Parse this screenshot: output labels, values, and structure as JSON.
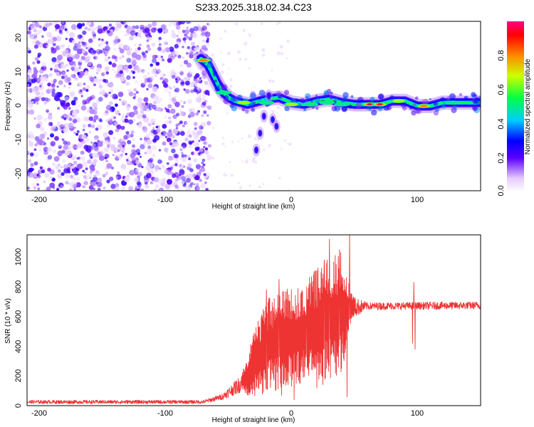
{
  "title": "S233.2025.318.02.34.C23",
  "chart_data": [
    {
      "type": "heatmap",
      "name": "spectrogram",
      "xlabel": "Height of straight line (km)",
      "ylabel": "Frequency (Hz)",
      "xlim": [
        -210,
        150
      ],
      "ylim": [
        -25,
        25
      ],
      "xticks": [
        -200,
        -100,
        0,
        100
      ],
      "yticks": [
        -20,
        -10,
        0,
        10,
        20
      ],
      "xtick_labels": [
        "-200",
        "-100",
        "0",
        "100"
      ],
      "ytick_labels": [
        "-20",
        "-10",
        "0",
        "10",
        "20"
      ],
      "ridge": [
        {
          "x": -72,
          "y": 14
        },
        {
          "x": -66,
          "y": 12
        },
        {
          "x": -62,
          "y": 9
        },
        {
          "x": -58,
          "y": 6
        },
        {
          "x": -54,
          "y": 4
        },
        {
          "x": -50,
          "y": 2.5
        },
        {
          "x": -45,
          "y": 1.5
        },
        {
          "x": -40,
          "y": 1
        },
        {
          "x": -35,
          "y": 0.5
        },
        {
          "x": -30,
          "y": 1
        },
        {
          "x": -20,
          "y": 2
        },
        {
          "x": -10,
          "y": 2.5
        },
        {
          "x": 0,
          "y": 1
        },
        {
          "x": 10,
          "y": 0.5
        },
        {
          "x": 20,
          "y": 1.5
        },
        {
          "x": 30,
          "y": 2
        },
        {
          "x": 40,
          "y": 1
        },
        {
          "x": 50,
          "y": 0.5
        },
        {
          "x": 60,
          "y": 0.5
        },
        {
          "x": 70,
          "y": 0.5
        },
        {
          "x": 80,
          "y": 1.5
        },
        {
          "x": 90,
          "y": 1.5
        },
        {
          "x": 100,
          "y": 0
        },
        {
          "x": 110,
          "y": 0
        },
        {
          "x": 120,
          "y": 1
        },
        {
          "x": 130,
          "y": 1
        },
        {
          "x": 140,
          "y": 1
        },
        {
          "x": 150,
          "y": 1
        }
      ],
      "peak_spots": [
        {
          "x": -70,
          "y": 13.5,
          "v": 0.8
        },
        {
          "x": -54,
          "y": 4,
          "v": 0.55
        },
        {
          "x": -38,
          "y": 1,
          "v": 0.75
        },
        {
          "x": -20,
          "y": 1,
          "v": 0.6
        },
        {
          "x": 0,
          "y": 0.5,
          "v": 0.65
        },
        {
          "x": 15,
          "y": 0.5,
          "v": 0.5
        },
        {
          "x": 28,
          "y": 1,
          "v": 0.6
        },
        {
          "x": 40,
          "y": 0.5,
          "v": 0.5
        },
        {
          "x": 62,
          "y": 0.5,
          "v": 0.95
        },
        {
          "x": 70,
          "y": 0.5,
          "v": 0.95
        },
        {
          "x": 85,
          "y": 1.5,
          "v": 0.75
        },
        {
          "x": 105,
          "y": 0,
          "v": 0.9
        },
        {
          "x": 128,
          "y": 1,
          "v": 0.55
        }
      ],
      "tail_spots": [
        {
          "x": -22,
          "y": -3
        },
        {
          "x": -25,
          "y": -8
        },
        {
          "x": -28,
          "y": -13
        },
        {
          "x": -15,
          "y": -4
        },
        {
          "x": -12,
          "y": -6
        },
        {
          "x": -18,
          "y": 3
        }
      ]
    },
    {
      "type": "colorbar",
      "name": "amplitude-colorbar",
      "label": "Normalized spectral amplitude",
      "range": [
        0,
        1
      ],
      "ticks": [
        0.0,
        0.2,
        0.4,
        0.6,
        0.8
      ],
      "tick_labels": [
        "0.0",
        "0.2",
        "0.4",
        "0.6",
        "0.8"
      ]
    },
    {
      "type": "line",
      "name": "snr-trace",
      "xlabel": "Height of straight line (km)",
      "ylabel": "SNR (10 * v/v)",
      "xlim": [
        -210,
        150
      ],
      "ylim": [
        0,
        1150
      ],
      "xticks": [
        -200,
        -100,
        0,
        100
      ],
      "yticks": [
        0,
        200,
        400,
        600,
        800,
        1000
      ],
      "xtick_labels": [
        "-200",
        "-100",
        "0",
        "100"
      ],
      "ytick_labels": [
        "0",
        "200",
        "400",
        "600",
        "800",
        "1000"
      ],
      "color": "#ee3333",
      "envelope": [
        {
          "x": -210,
          "base": 25,
          "amp": 12
        },
        {
          "x": -70,
          "base": 25,
          "amp": 12
        },
        {
          "x": -55,
          "base": 60,
          "amp": 20
        },
        {
          "x": -40,
          "base": 150,
          "amp": 60
        },
        {
          "x": -30,
          "base": 280,
          "amp": 230
        },
        {
          "x": -20,
          "base": 400,
          "amp": 320
        },
        {
          "x": -5,
          "base": 450,
          "amp": 330
        },
        {
          "x": 10,
          "base": 480,
          "amp": 340
        },
        {
          "x": 25,
          "base": 560,
          "amp": 420
        },
        {
          "x": 40,
          "base": 620,
          "amp": 420
        },
        {
          "x": 48,
          "base": 660,
          "amp": 80
        },
        {
          "x": 60,
          "base": 670,
          "amp": 25
        },
        {
          "x": 150,
          "base": 675,
          "amp": 25
        }
      ],
      "spikes": [
        {
          "x": -35,
          "y": 250
        },
        {
          "x": -20,
          "y": 780
        },
        {
          "x": -10,
          "y": 850
        },
        {
          "x": -8,
          "y": 70
        },
        {
          "x": 2,
          "y": 40
        },
        {
          "x": 12,
          "y": 800
        },
        {
          "x": 20,
          "y": 120
        },
        {
          "x": 26,
          "y": 980
        },
        {
          "x": 30,
          "y": 1120
        },
        {
          "x": 38,
          "y": 1050
        },
        {
          "x": 46,
          "y": 1150
        },
        {
          "x": 44,
          "y": 60
        },
        {
          "x": 96,
          "y": 420
        },
        {
          "x": 97,
          "y": 830
        },
        {
          "x": 98,
          "y": 380
        }
      ]
    }
  ]
}
